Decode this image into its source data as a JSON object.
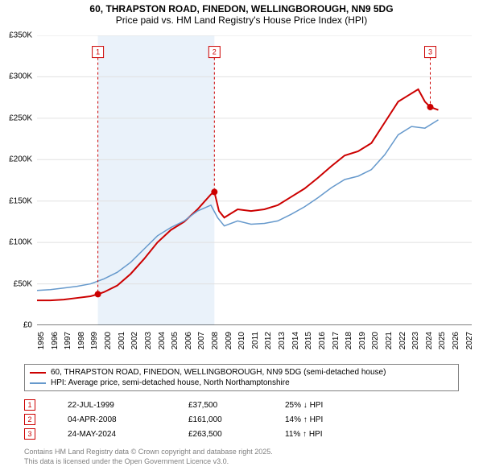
{
  "title_line1": "60, THRAPSTON ROAD, FINEDON, WELLINGBOROUGH, NN9 5DG",
  "title_line2": "Price paid vs. HM Land Registry's House Price Index (HPI)",
  "chart": {
    "type": "line",
    "background_color": "#ffffff",
    "shaded_band_color": "#eaf2fa",
    "xlim": [
      1995,
      2027.5
    ],
    "ylim": [
      0,
      350000
    ],
    "ytick_step": 50000,
    "ytick_labels": [
      "£0",
      "£50K",
      "£100K",
      "£150K",
      "£200K",
      "£250K",
      "£300K",
      "£350K"
    ],
    "xtick_step": 1,
    "xtick_labels": [
      "1995",
      "1996",
      "1997",
      "1998",
      "1999",
      "2000",
      "2001",
      "2002",
      "2003",
      "2004",
      "2005",
      "2006",
      "2007",
      "2008",
      "2009",
      "2010",
      "2011",
      "2012",
      "2013",
      "2014",
      "2015",
      "2016",
      "2017",
      "2018",
      "2019",
      "2020",
      "2021",
      "2022",
      "2023",
      "2024",
      "2025",
      "2026",
      "2027"
    ],
    "shaded_xrange": [
      1999.55,
      2008.26
    ],
    "grid_color": "#e0e0e0",
    "series": [
      {
        "name": "price_paid",
        "color": "#cc0000",
        "width": 2,
        "points": [
          [
            1995.0,
            30000
          ],
          [
            1996.0,
            30000
          ],
          [
            1997.0,
            31000
          ],
          [
            1998.0,
            33000
          ],
          [
            1999.0,
            35000
          ],
          [
            1999.55,
            37500
          ],
          [
            2000.0,
            40000
          ],
          [
            2001.0,
            48000
          ],
          [
            2002.0,
            62000
          ],
          [
            2003.0,
            80000
          ],
          [
            2004.0,
            100000
          ],
          [
            2005.0,
            115000
          ],
          [
            2006.0,
            125000
          ],
          [
            2007.0,
            140000
          ],
          [
            2008.0,
            158000
          ],
          [
            2008.26,
            161000
          ],
          [
            2008.6,
            138000
          ],
          [
            2009.0,
            130000
          ],
          [
            2009.5,
            135000
          ],
          [
            2010.0,
            140000
          ],
          [
            2011.0,
            138000
          ],
          [
            2012.0,
            140000
          ],
          [
            2013.0,
            145000
          ],
          [
            2014.0,
            155000
          ],
          [
            2015.0,
            165000
          ],
          [
            2016.0,
            178000
          ],
          [
            2017.0,
            192000
          ],
          [
            2018.0,
            205000
          ],
          [
            2019.0,
            210000
          ],
          [
            2020.0,
            220000
          ],
          [
            2021.0,
            245000
          ],
          [
            2022.0,
            270000
          ],
          [
            2023.0,
            280000
          ],
          [
            2023.5,
            285000
          ],
          [
            2024.0,
            270000
          ],
          [
            2024.4,
            263500
          ],
          [
            2025.0,
            260000
          ]
        ]
      },
      {
        "name": "hpi",
        "color": "#6699cc",
        "width": 1.5,
        "points": [
          [
            1995.0,
            42000
          ],
          [
            1996.0,
            43000
          ],
          [
            1997.0,
            45000
          ],
          [
            1998.0,
            47000
          ],
          [
            1999.0,
            50000
          ],
          [
            2000.0,
            56000
          ],
          [
            2001.0,
            64000
          ],
          [
            2002.0,
            76000
          ],
          [
            2003.0,
            92000
          ],
          [
            2004.0,
            108000
          ],
          [
            2005.0,
            118000
          ],
          [
            2006.0,
            126000
          ],
          [
            2007.0,
            138000
          ],
          [
            2008.0,
            145000
          ],
          [
            2008.5,
            130000
          ],
          [
            2009.0,
            120000
          ],
          [
            2010.0,
            126000
          ],
          [
            2011.0,
            122000
          ],
          [
            2012.0,
            123000
          ],
          [
            2013.0,
            126000
          ],
          [
            2014.0,
            134000
          ],
          [
            2015.0,
            143000
          ],
          [
            2016.0,
            154000
          ],
          [
            2017.0,
            166000
          ],
          [
            2018.0,
            176000
          ],
          [
            2019.0,
            180000
          ],
          [
            2020.0,
            188000
          ],
          [
            2021.0,
            206000
          ],
          [
            2022.0,
            230000
          ],
          [
            2023.0,
            240000
          ],
          [
            2024.0,
            238000
          ],
          [
            2025.0,
            248000
          ]
        ]
      }
    ],
    "sale_markers": [
      {
        "n": "1",
        "x": 1999.55,
        "y": 37500,
        "label_y": 330000,
        "color": "#cc0000"
      },
      {
        "n": "2",
        "x": 2008.26,
        "y": 161000,
        "label_y": 330000,
        "color": "#cc0000"
      },
      {
        "n": "3",
        "x": 2024.4,
        "y": 263500,
        "label_y": 330000,
        "color": "#cc0000"
      }
    ],
    "sale_dot_radius": 4,
    "marker_box": {
      "size": 14,
      "fontsize": 9,
      "fill": "#ffffff"
    },
    "vline_dash": "3,3"
  },
  "legend": {
    "items": [
      {
        "color": "#cc0000",
        "label": "60, THRAPSTON ROAD, FINEDON, WELLINGBOROUGH, NN9 5DG (semi-detached house)"
      },
      {
        "color": "#6699cc",
        "label": "HPI: Average price, semi-detached house, North Northamptonshire"
      }
    ]
  },
  "sales": [
    {
      "n": "1",
      "color": "#cc0000",
      "date": "22-JUL-1999",
      "price": "£37,500",
      "diff": "25% ↓ HPI"
    },
    {
      "n": "2",
      "color": "#cc0000",
      "date": "04-APR-2008",
      "price": "£161,000",
      "diff": "14% ↑ HPI"
    },
    {
      "n": "3",
      "color": "#cc0000",
      "date": "24-MAY-2024",
      "price": "£263,500",
      "diff": "11% ↑ HPI"
    }
  ],
  "attribution_line1": "Contains HM Land Registry data © Crown copyright and database right 2025.",
  "attribution_line2": "This data is licensed under the Open Government Licence v3.0."
}
